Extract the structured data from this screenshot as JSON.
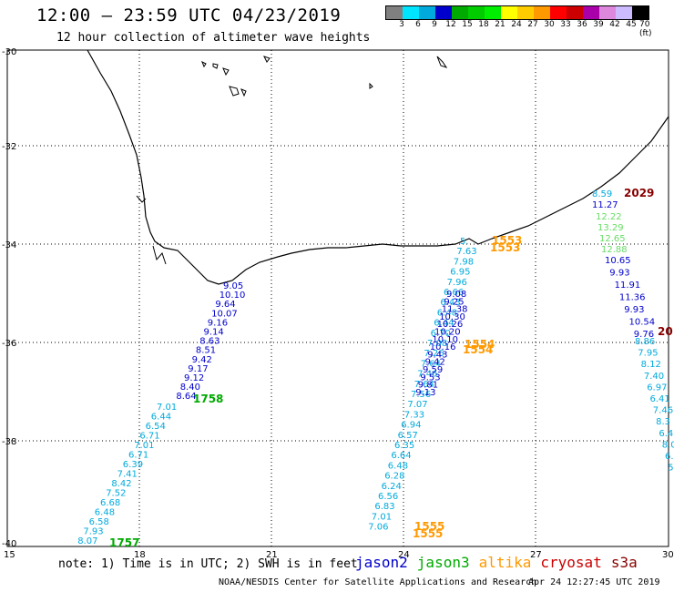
{
  "title": "12:00 – 23:59 UTC 04/23/2019",
  "subtitle": "12 hour collection of altimeter wave heights",
  "legend": {
    "unit": "(ft)",
    "ticks": [
      "3",
      "6",
      "9",
      "12",
      "15",
      "18",
      "21",
      "24",
      "27",
      "30",
      "33",
      "36",
      "39",
      "42",
      "45",
      "70"
    ],
    "colors": [
      "#808080",
      "#00e5ff",
      "#00aadd",
      "#0000cc",
      "#00aa00",
      "#00cc00",
      "#00ee00",
      "#ffff00",
      "#ffcc00",
      "#ff9900",
      "#ff0000",
      "#cc0000",
      "#aa00aa",
      "#dd88dd",
      "#ccbbff",
      "#000000"
    ]
  },
  "axes": {
    "lon_ticks": [
      "15",
      "18",
      "21",
      "24",
      "27",
      "30"
    ],
    "lat_ticks": [
      "-30",
      "-32",
      "-34",
      "-36",
      "-38",
      "-40"
    ]
  },
  "footnote": "note: 1) Time is in UTC; 2) SWH is in feet",
  "satellites": [
    {
      "name": "jason2",
      "color": "#0000cc"
    },
    {
      "name": "jason3",
      "color": "#00aa00"
    },
    {
      "name": "altika",
      "color": "#ff9900"
    },
    {
      "name": "cryosat",
      "color": "#cc0000"
    },
    {
      "name": "s3a",
      "color": "#880000"
    }
  ],
  "credit": "NOAA/NESDIS Center for Satellite Applications and Research",
  "timestamp": "Apr 24 12:27:45 UTC 2019",
  "colors": {
    "cyan": "#00aadd",
    "blue": "#0000cc",
    "green": "#00aa00",
    "lightgreen": "#66dd66",
    "orange": "#ff9900",
    "darkred": "#880000"
  },
  "track_times": {
    "t1758": "1758",
    "t1757": "1757",
    "t1553a": "1553",
    "t1553b": "1553",
    "t1554a": "1554",
    "t1554b": "1554",
    "t1555a": "1555",
    "t1555b": "1555",
    "t2029": "2029",
    "t20": "20"
  },
  "track_west": {
    "blue": [
      "9.05",
      "10.10",
      "9.64",
      "10.07",
      "9.16",
      "9.14",
      "8.63",
      "8.51",
      "9.42",
      "9.17",
      "9.12",
      "8.40",
      "8.64"
    ],
    "cyan": [
      "7.01",
      "6.44",
      "6.54",
      "6.71",
      "7.01",
      "6.71",
      "6.39",
      "7.41",
      "8.42",
      "7.52",
      "6.68",
      "6.48",
      "6.58",
      "7.93",
      "8.07"
    ]
  },
  "track_east": {
    "cyan_top": [
      "8.59"
    ],
    "blue_top": [
      "11.27"
    ],
    "green": [
      "12.22",
      "13.29",
      "12.65",
      "12.88"
    ],
    "blue": [
      "10.65",
      "9.93",
      "11.91",
      "11.36",
      "9.93",
      "10.54",
      "9.76"
    ],
    "cyan": [
      "8.86",
      "7.95",
      "8.12",
      "7.40",
      "6.97",
      "6.41",
      "7.46",
      "8.3",
      "6.4",
      "8.0",
      "6.9",
      "5"
    ]
  }
}
